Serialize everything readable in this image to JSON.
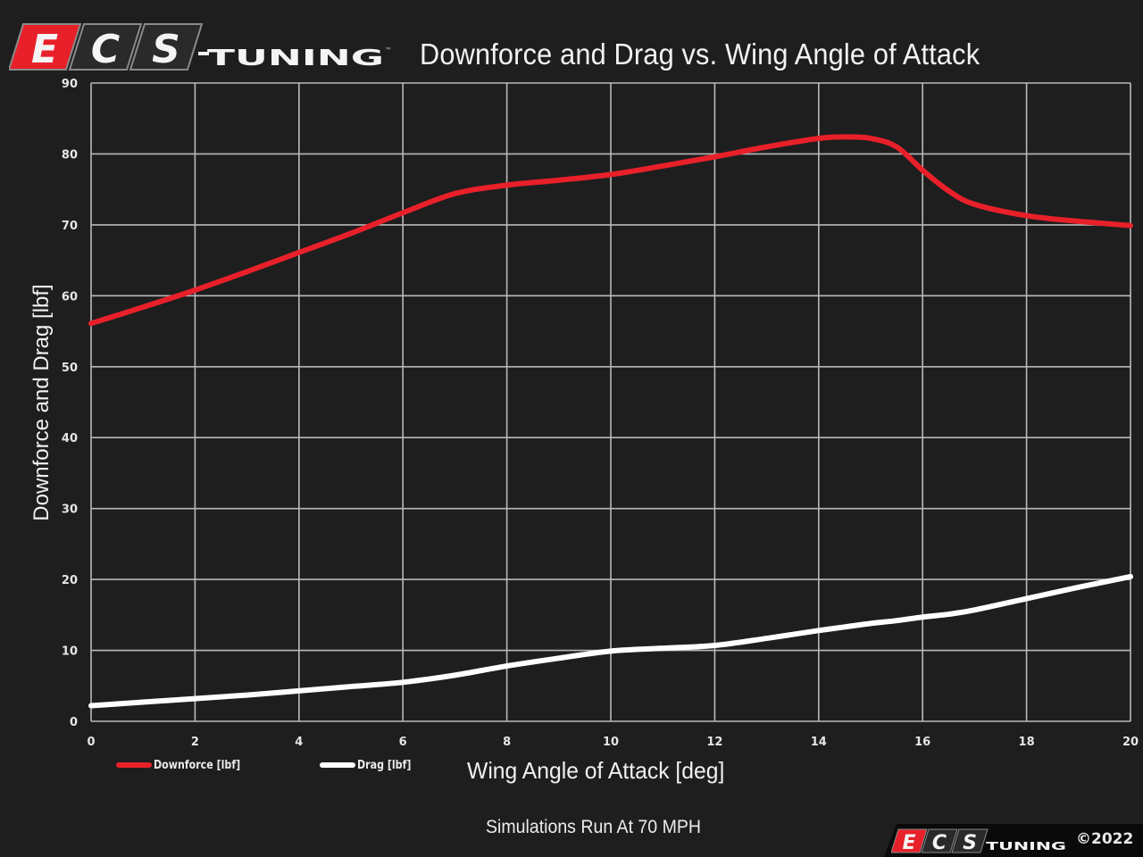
{
  "brand": {
    "logo_letters": [
      "E",
      "C",
      "S"
    ],
    "logo_word": "TUNING",
    "trademark": "™",
    "colors": {
      "red": "#e8202a",
      "dark_panel": "#2a2a2a",
      "letter_white": "#f4f4f4",
      "outline": "#9a9a9a"
    }
  },
  "header": {
    "title": "Downforce and Drag vs. Wing Angle of Attack"
  },
  "axes": {
    "y_label": "Downforce and Drag [lbf]",
    "x_label": "Wing Angle of Attack [deg]"
  },
  "legend": {
    "items": [
      {
        "label": "Downforce [lbf]",
        "color": "#e8202a"
      },
      {
        "label": "Drag [lbf]",
        "color": "#ffffff"
      }
    ]
  },
  "footer": {
    "subtitle": "Simulations Run At 70 MPH",
    "copyright": "©2022"
  },
  "chart_data": {
    "type": "line",
    "title": "Downforce and Drag vs. Wing Angle of Attack",
    "subtitle": "Simulations Run At 70 MPH",
    "xlabel": "Wing Angle of Attack [deg]",
    "ylabel": "Downforce and Drag [lbf]",
    "xlim": [
      0,
      20
    ],
    "ylim": [
      0,
      90
    ],
    "x_ticks": [
      0,
      2,
      4,
      6,
      8,
      10,
      12,
      14,
      16,
      18,
      20
    ],
    "y_ticks": [
      0,
      10,
      20,
      30,
      40,
      50,
      60,
      70,
      80,
      90
    ],
    "grid": true,
    "legend_position": "bottom-left",
    "x": [
      0,
      1,
      2,
      3,
      4,
      5,
      6,
      7,
      8,
      9,
      10,
      11,
      12,
      13,
      14,
      14.5,
      15,
      15.5,
      16,
      16.5,
      17,
      18,
      19,
      20
    ],
    "series": [
      {
        "name": "Downforce [lbf]",
        "color": "#e8202a",
        "values": [
          56.1,
          58.4,
          60.8,
          63.4,
          66.1,
          68.8,
          71.7,
          74.4,
          75.6,
          76.3,
          77.1,
          78.3,
          79.6,
          81.0,
          82.2,
          82.4,
          82.2,
          81.0,
          77.7,
          74.8,
          72.9,
          71.3,
          70.5,
          69.9
        ]
      },
      {
        "name": "Drag [lbf]",
        "color": "#ffffff",
        "values": [
          2.2,
          2.7,
          3.2,
          3.7,
          4.3,
          4.9,
          5.5,
          6.5,
          7.8,
          8.9,
          9.9,
          10.3,
          10.7,
          11.7,
          12.8,
          13.3,
          13.8,
          14.2,
          14.7,
          15.1,
          15.7,
          17.3,
          18.9,
          20.4
        ]
      }
    ]
  }
}
